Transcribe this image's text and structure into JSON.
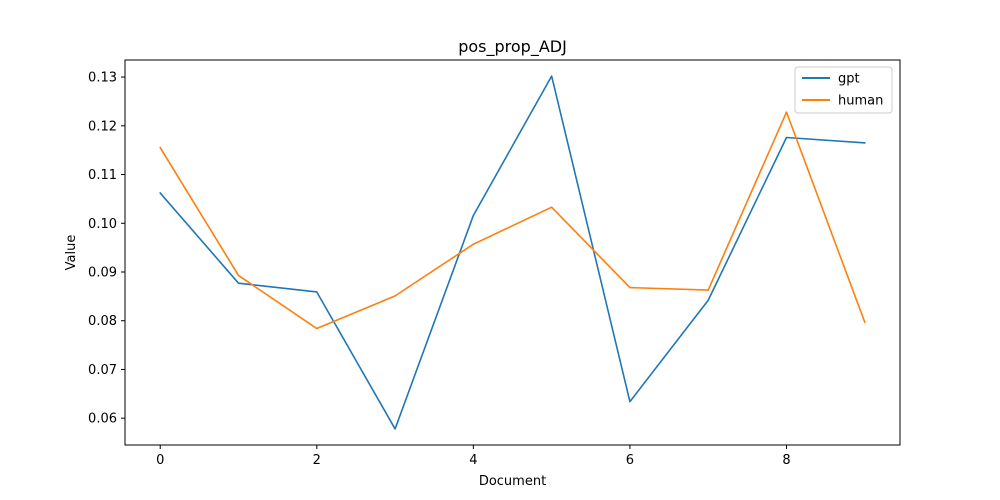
{
  "chart_data": {
    "type": "line",
    "title": "pos_prop_ADJ",
    "xlabel": "Document",
    "ylabel": "Value",
    "x": [
      0,
      1,
      2,
      3,
      4,
      5,
      6,
      7,
      8,
      9
    ],
    "xlim": [
      -0.45,
      9.45
    ],
    "ylim": [
      0.0545,
      0.1335
    ],
    "xticks": [
      0,
      2,
      4,
      6,
      8
    ],
    "yticks": [
      0.06,
      0.07,
      0.08,
      0.09,
      0.1,
      0.11,
      0.12,
      0.13
    ],
    "ytick_labels": [
      "0.06",
      "0.07",
      "0.08",
      "0.09",
      "0.10",
      "0.11",
      "0.12",
      "0.13"
    ],
    "grid": false,
    "legend_position": "top-right",
    "series": [
      {
        "name": "gpt",
        "color": "#1f77b4",
        "values": [
          0.1062,
          0.0877,
          0.0859,
          0.0578,
          0.1016,
          0.1302,
          0.0634,
          0.0842,
          0.1176,
          0.1165
        ]
      },
      {
        "name": "human",
        "color": "#ff7f0e",
        "values": [
          0.1155,
          0.0893,
          0.0784,
          0.0851,
          0.0957,
          0.1033,
          0.0868,
          0.0863,
          0.1228,
          0.0797
        ]
      }
    ]
  }
}
